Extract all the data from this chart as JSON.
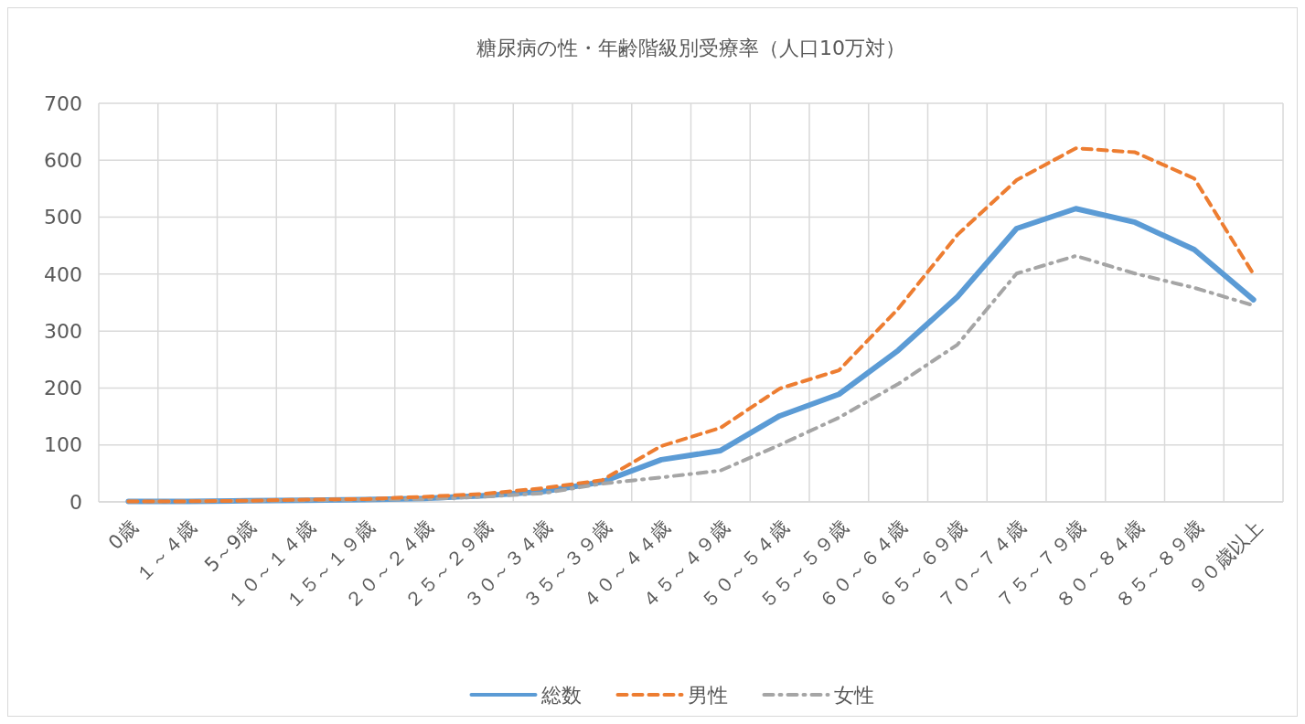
{
  "chart_data": {
    "type": "line",
    "title": "糖尿病の性・年齢階級別受療率（人口10万対）",
    "categories": [
      "0歳",
      "１～４歳",
      "5～9歳",
      "１０～１４歳",
      "１５～１９歳",
      "２０～２４歳",
      "２５～２９歳",
      "３０～３４歳",
      "３５～３９歳",
      "４０～４４歳",
      "４５～４９歳",
      "５０～５４歳",
      "５５～５９歳",
      "６０～６４歳",
      "６５～６９歳",
      "７０～７４歳",
      "７５～７９歳",
      "８０～８４歳",
      "８５～８９歳",
      "９０歳以上"
    ],
    "series": [
      {
        "name": "総数",
        "color": "#5b9bd5",
        "line_style": "solid",
        "values": [
          1,
          1,
          2,
          3,
          4,
          6,
          11,
          18,
          35,
          74,
          90,
          151,
          189,
          266,
          360,
          480,
          515,
          491,
          443,
          355
        ]
      },
      {
        "name": "男性",
        "color": "#ed7d31",
        "line_style": "dashed",
        "values": [
          1,
          1,
          2,
          4,
          5,
          9,
          14,
          24,
          38,
          98,
          130,
          199,
          231,
          339,
          469,
          565,
          621,
          614,
          568,
          400
        ]
      },
      {
        "name": "女性",
        "color": "#a5a5a5",
        "line_style": "dashdot",
        "values": [
          1,
          1,
          2,
          3,
          4,
          5,
          9,
          15,
          32,
          43,
          55,
          100,
          148,
          207,
          276,
          401,
          432,
          401,
          376,
          345
        ]
      }
    ],
    "ylim": [
      0,
      700
    ],
    "yticks": [
      0,
      100,
      200,
      300,
      400,
      500,
      600,
      700
    ],
    "grid": true,
    "legend": "bottom",
    "marker": "none"
  }
}
